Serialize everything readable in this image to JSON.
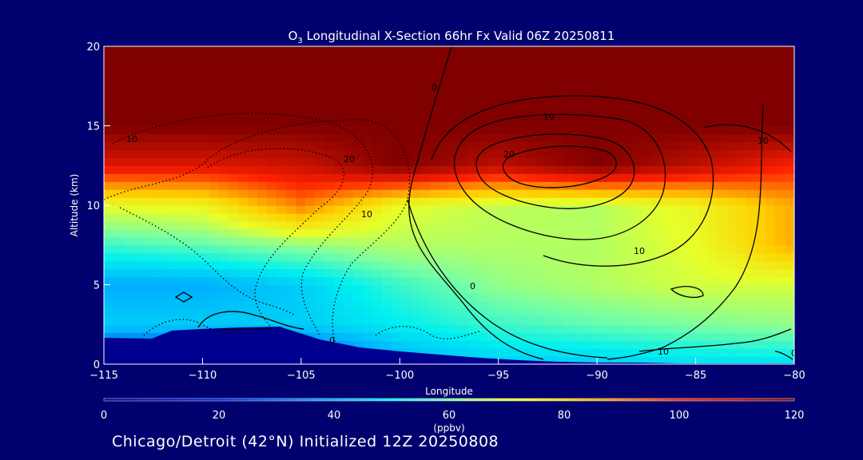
{
  "chart_data": {
    "type": "heatmap",
    "title_prefix": "O",
    "title_sub": "3",
    "title_rest": " Longitudinal X-Section 66hr  Fx Valid 06Z 20250811",
    "xlabel": "Longitude",
    "ylabel": "Altitude (km)",
    "xlim": [
      -115,
      -80
    ],
    "ylim": [
      0,
      20
    ],
    "x_ticks": [
      -115,
      -110,
      -105,
      -100,
      -95,
      -90,
      -85,
      -80
    ],
    "x_tick_labels": [
      "−115",
      "−110",
      "−105",
      "−100",
      "−95",
      "−90",
      "−85",
      "−80"
    ],
    "y_ticks": [
      0,
      5,
      10,
      15,
      20
    ],
    "y_tick_labels": [
      "0",
      "5",
      "10",
      "15",
      "20"
    ],
    "colorbar": {
      "min": 0,
      "max": 120,
      "ticks": [
        0,
        20,
        40,
        60,
        80,
        100,
        120
      ],
      "tick_labels": [
        "0",
        "20",
        "40",
        "60",
        "80",
        "100",
        "120"
      ],
      "unit_label": "(ppbv)"
    },
    "ozone_ppbv": {
      "lon": [
        -115,
        -110,
        -105,
        -100,
        -95,
        -90,
        -85,
        -80
      ],
      "alt_km": [
        0,
        2.5,
        5,
        7.5,
        10,
        12.5,
        15,
        17.5,
        20
      ],
      "values": [
        [
          15,
          15,
          22,
          40,
          45,
          45,
          48,
          48
        ],
        [
          45,
          45,
          45,
          50,
          55,
          58,
          60,
          62
        ],
        [
          40,
          40,
          45,
          55,
          62,
          65,
          68,
          68
        ],
        [
          55,
          58,
          62,
          65,
          65,
          65,
          70,
          85
        ],
        [
          70,
          72,
          90,
          70,
          66,
          65,
          72,
          85
        ],
        [
          105,
          105,
          108,
          120,
          110,
          120,
          110,
          100
        ],
        [
          120,
          120,
          120,
          120,
          120,
          120,
          120,
          120
        ],
        [
          120,
          120,
          120,
          120,
          120,
          120,
          120,
          120
        ],
        [
          120,
          120,
          120,
          120,
          120,
          120,
          120,
          120
        ]
      ]
    },
    "contour_labels": [
      "0",
      "10",
      "20",
      "0",
      "10",
      "10",
      "20",
      "10",
      "10",
      "0",
      "10",
      "0"
    ]
  },
  "caption": "Chicago/Detroit (42°N) Initialized 12Z 20250808"
}
